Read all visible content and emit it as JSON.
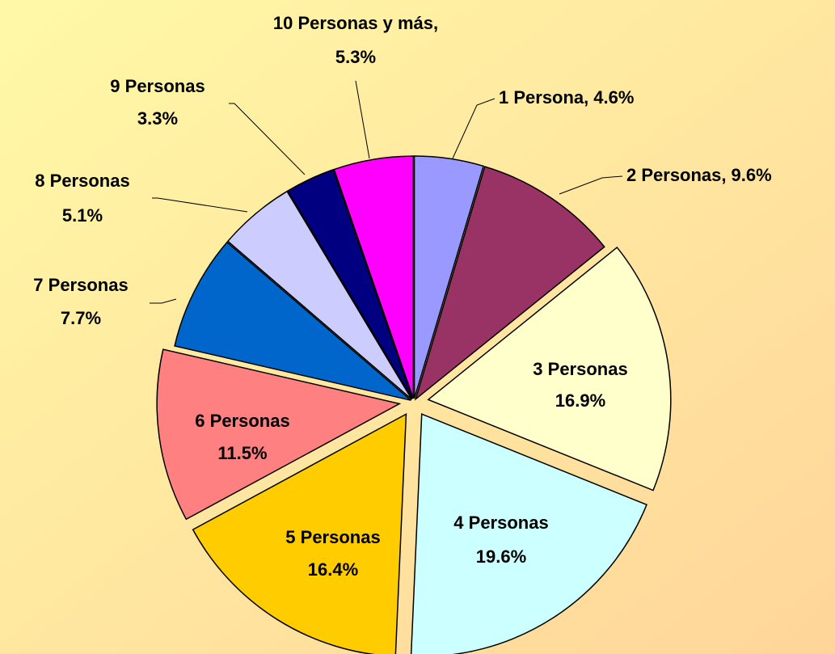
{
  "chart_data": {
    "type": "pie",
    "categories": [
      "1 Persona",
      "2 Personas",
      "3 Personas",
      "4 Personas",
      "5 Personas",
      "6 Personas",
      "7 Personas",
      "8 Personas",
      "9 Personas",
      "10 Personas y más"
    ],
    "values": [
      4.6,
      9.6,
      16.9,
      19.6,
      16.4,
      11.5,
      7.7,
      5.1,
      3.3,
      5.3
    ],
    "value_labels": [
      "4.6%",
      "9.6%",
      "16.9%",
      "19.6%",
      "16.4%",
      "11.5%",
      "7.7%",
      "5.1%",
      "3.3%",
      "5.3%"
    ],
    "separator": ",",
    "colors": [
      "#9999ff",
      "#993366",
      "#ffffcc",
      "#ccffff",
      "#ffcc00",
      "#ff8080",
      "#0066cc",
      "#ccccff",
      "#000080",
      "#ff00ff"
    ]
  }
}
